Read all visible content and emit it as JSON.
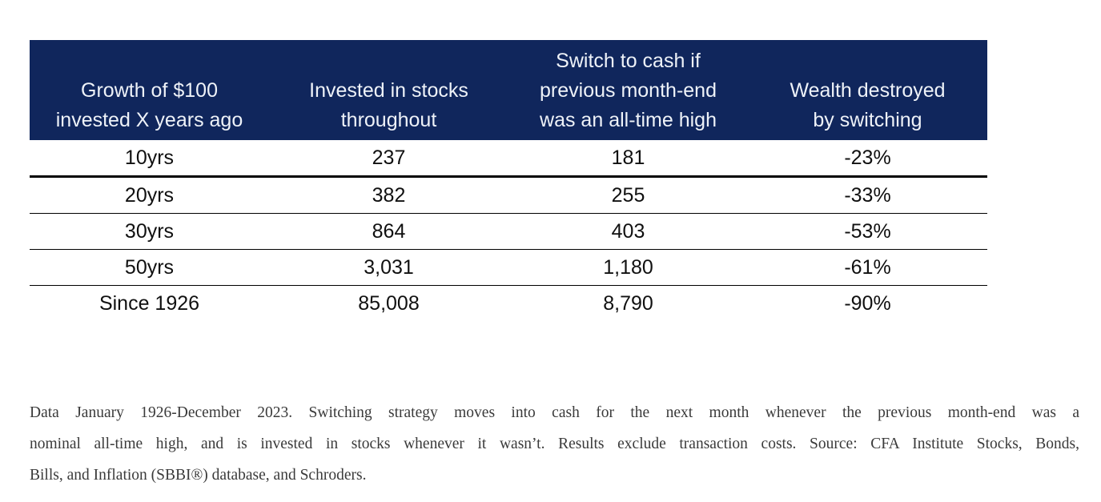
{
  "colors": {
    "header_bg": "#10265c",
    "header_text": "#eef2f8",
    "body_text": "#101010",
    "row_line": "#000000",
    "footnote_text": "#3a3a3a"
  },
  "table": {
    "headers": [
      "Growth of $100\ninvested X years ago",
      "Invested in stocks\nthroughout",
      "Switch to cash if\nprevious month-end\nwas an all-time high",
      "Wealth destroyed\nby switching"
    ],
    "rows": [
      [
        "10yrs",
        "237",
        "181",
        "-23%"
      ],
      [
        "20yrs",
        "382",
        "255",
        "-33%"
      ],
      [
        "30yrs",
        "864",
        "403",
        "-53%"
      ],
      [
        "50yrs",
        "3,031",
        "1,180",
        "-61%"
      ],
      [
        "Since 1926",
        "85,008",
        "8,790",
        "-90%"
      ]
    ]
  },
  "footnote": {
    "lines": [
      "Data January 1926-December 2023. Switching strategy moves into cash for the next month whenever the previous month-end was a",
      "nominal all-time high, and is invested in stocks whenever it wasn’t. Results exclude transaction costs. Source: CFA Institute Stocks, Bonds,",
      "Bills, and Inflation (SBBI®) database, and Schroders."
    ]
  },
  "chart_data": {
    "type": "table",
    "title": "",
    "columns": [
      "Growth of $100 invested X years ago",
      "Invested in stocks throughout",
      "Switch to cash if previous month-end was an all-time high",
      "Wealth destroyed by switching"
    ],
    "rows": [
      [
        "10yrs",
        237,
        181,
        "-23%"
      ],
      [
        "20yrs",
        382,
        255,
        "-33%"
      ],
      [
        "30yrs",
        864,
        403,
        "-53%"
      ],
      [
        "50yrs",
        3031,
        1180,
        "-61%"
      ],
      [
        "Since 1926",
        85008,
        8790,
        "-90%"
      ]
    ],
    "note": "Data January 1926-December 2023. Switching strategy moves into cash for the next month whenever the previous month-end was a nominal all-time high, and is invested in stocks whenever it wasn’t. Results exclude transaction costs. Source: CFA Institute Stocks, Bonds, Bills, and Inflation (SBBI®) database, and Schroders."
  }
}
